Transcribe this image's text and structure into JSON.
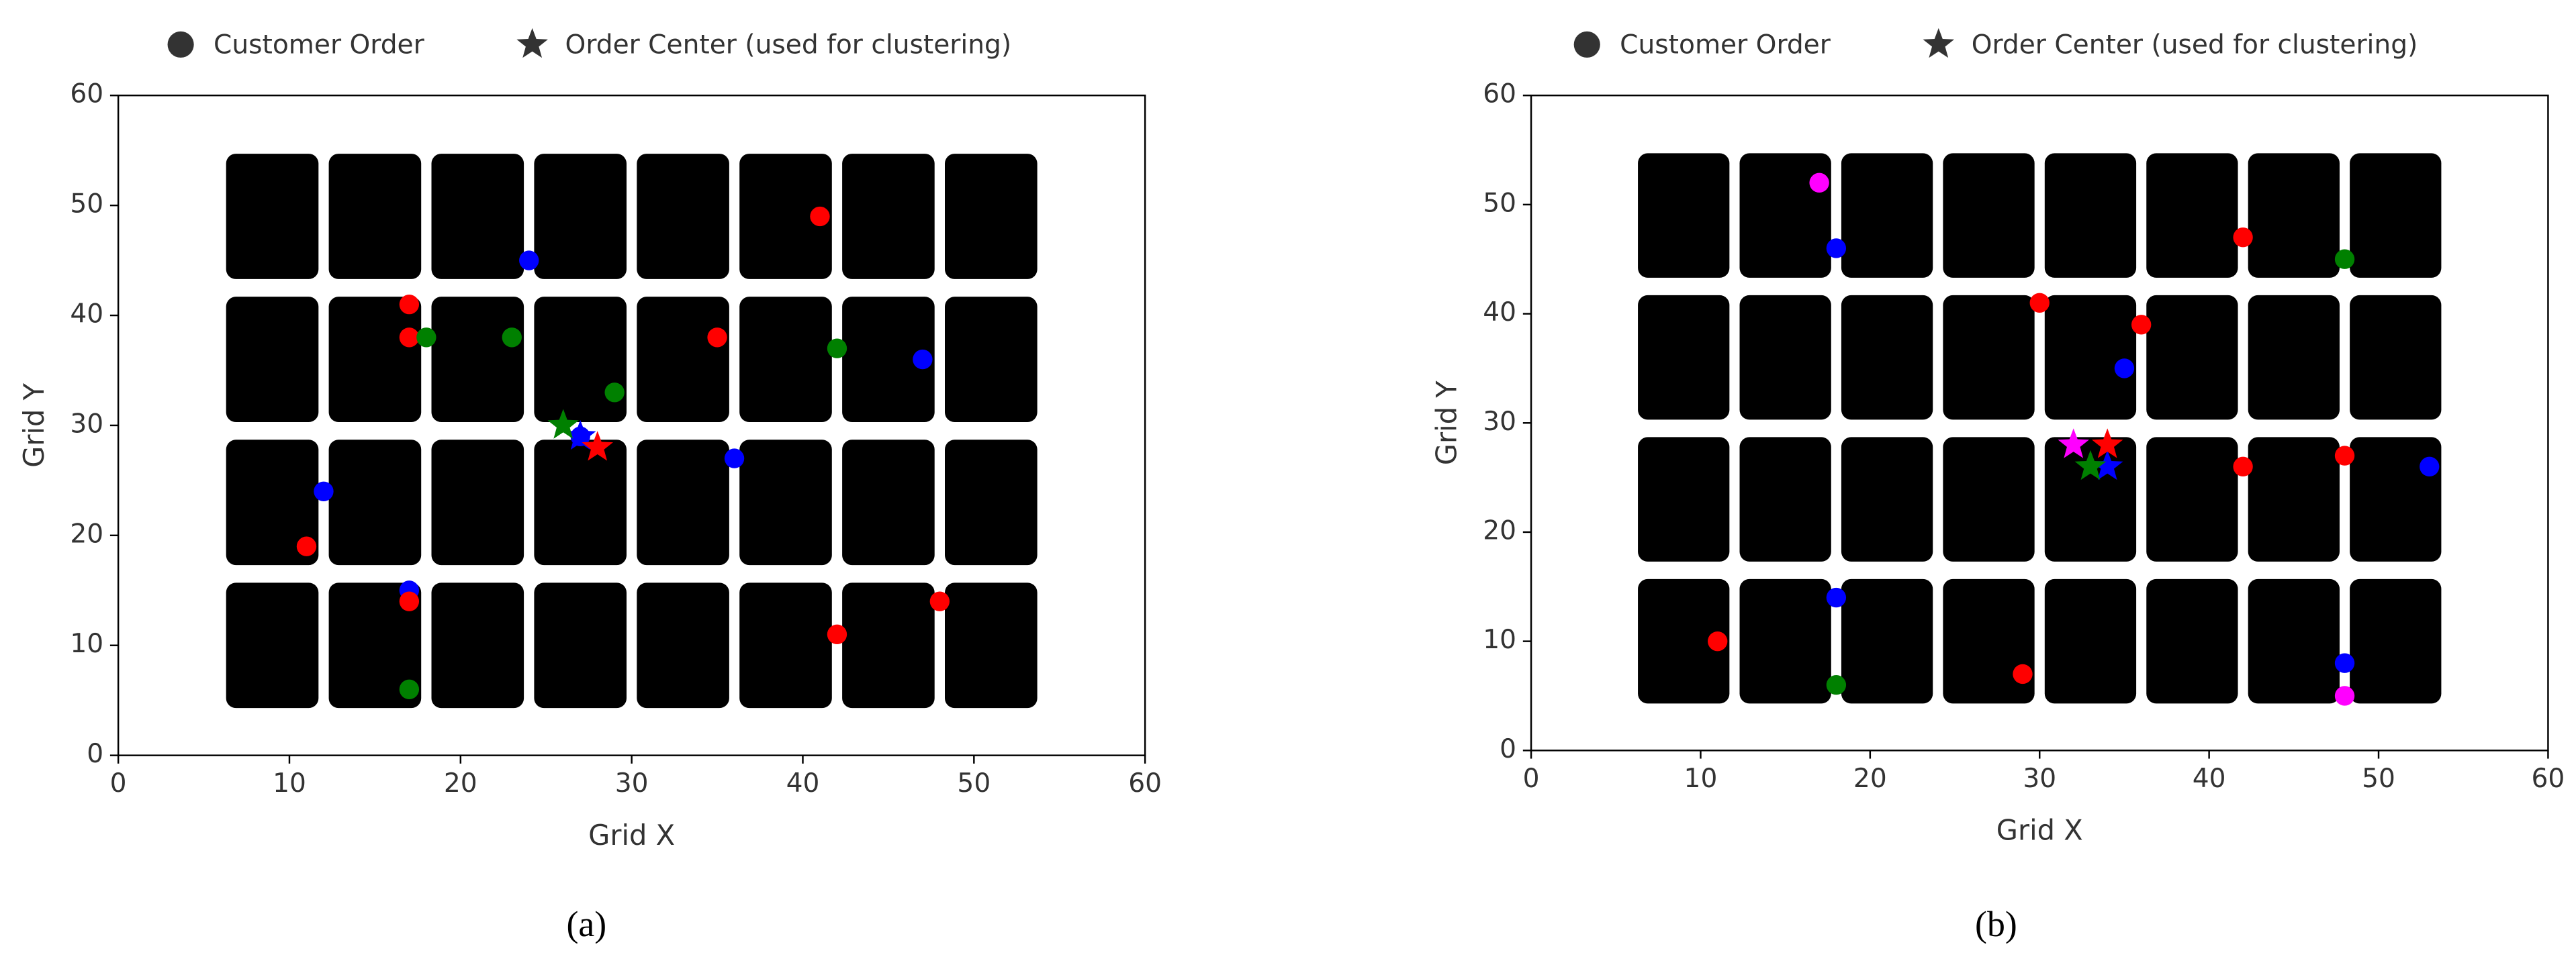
{
  "chart_data": [
    {
      "type": "scatter",
      "caption": "(a)",
      "xlabel": "Grid X",
      "ylabel": "Grid Y",
      "legend": [
        "Customer Order",
        "Order Center (used for clustering)"
      ],
      "xlim": [
        0,
        60
      ],
      "ylim": [
        0,
        60
      ],
      "xticks": [
        0,
        10,
        20,
        30,
        40,
        50,
        60
      ],
      "yticks": [
        0,
        10,
        20,
        30,
        40,
        50,
        60
      ],
      "racks": {
        "x_ranges": [
          [
            7,
            11
          ],
          [
            13,
            17
          ],
          [
            19,
            23
          ],
          [
            25,
            29
          ],
          [
            31,
            35
          ],
          [
            37,
            41
          ],
          [
            43,
            47
          ],
          [
            49,
            53
          ]
        ],
        "y_ranges": [
          [
            5,
            15
          ],
          [
            18,
            28
          ],
          [
            31,
            41
          ],
          [
            44,
            54
          ]
        ],
        "color": "#000000"
      },
      "series": [
        {
          "color": "#0000ff",
          "orders": {
            "x": [
              24,
              47,
              12,
              27,
              36,
              17
            ],
            "y": [
              45,
              36,
              24,
              29,
              27,
              15
            ]
          },
          "center": {
            "x": 27,
            "y": 29
          }
        },
        {
          "color": "#ff0000",
          "orders": {
            "x": [
              41,
              17,
              17,
              35,
              11,
              17,
              42,
              48
            ],
            "y": [
              49,
              41,
              38,
              38,
              19,
              14,
              11,
              14
            ]
          },
          "center": {
            "x": 28,
            "y": 28
          }
        },
        {
          "color": "#008000",
          "orders": {
            "x": [
              18,
              23,
              29,
              42,
              17
            ],
            "y": [
              38,
              38,
              33,
              37,
              6
            ]
          },
          "center": {
            "x": 26,
            "y": 30
          }
        }
      ]
    },
    {
      "type": "scatter",
      "caption": "(b)",
      "xlabel": "Grid X",
      "ylabel": "Grid Y",
      "legend": [
        "Customer Order",
        "Order Center (used for clustering)"
      ],
      "xlim": [
        0,
        60
      ],
      "ylim": [
        0,
        60
      ],
      "xticks": [
        0,
        10,
        20,
        30,
        40,
        50,
        60
      ],
      "yticks": [
        0,
        10,
        20,
        30,
        40,
        50,
        60
      ],
      "racks": {
        "x_ranges": [
          [
            7,
            11
          ],
          [
            13,
            17
          ],
          [
            19,
            23
          ],
          [
            25,
            29
          ],
          [
            31,
            35
          ],
          [
            37,
            41
          ],
          [
            43,
            47
          ],
          [
            49,
            53
          ]
        ],
        "y_ranges": [
          [
            5,
            15
          ],
          [
            18,
            28
          ],
          [
            31,
            41
          ],
          [
            44,
            54
          ]
        ],
        "color": "#000000"
      },
      "series": [
        {
          "color": "#ff00ff",
          "orders": {
            "x": [
              17,
              48
            ],
            "y": [
              52,
              5
            ]
          },
          "center": {
            "x": 32,
            "y": 28
          }
        },
        {
          "color": "#0000ff",
          "orders": {
            "x": [
              18,
              35,
              53,
              18,
              48
            ],
            "y": [
              46,
              35,
              26,
              14,
              8
            ]
          },
          "center": {
            "x": 34,
            "y": 26
          }
        },
        {
          "color": "#ff0000",
          "orders": {
            "x": [
              42,
              30,
              36,
              42,
              48,
              11,
              29
            ],
            "y": [
              47,
              41,
              39,
              26,
              27,
              10,
              7
            ]
          },
          "center": {
            "x": 34,
            "y": 28
          }
        },
        {
          "color": "#008000",
          "orders": {
            "x": [
              48,
              18
            ],
            "y": [
              45,
              6
            ]
          },
          "center": {
            "x": 33,
            "y": 26
          }
        }
      ]
    }
  ]
}
